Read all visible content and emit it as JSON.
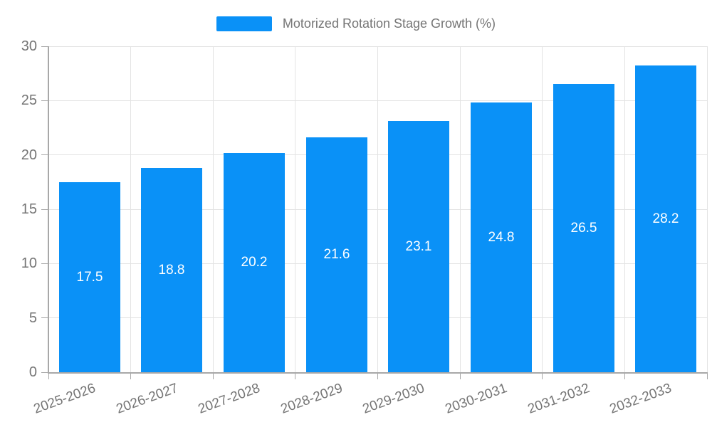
{
  "legend": {
    "label": "Motorized Rotation Stage Growth (%)"
  },
  "colors": {
    "bar": "#0a91f7",
    "grid": "#e3e3e3",
    "axis": "#a8a8a8",
    "tick_text": "#757575",
    "value_label": "#ffffff",
    "background": "#ffffff"
  },
  "chart_data": {
    "type": "bar",
    "title": "",
    "legend_entries": [
      "Motorized Rotation Stage Growth (%)"
    ],
    "legend_position": "top-center",
    "categories": [
      "2025-2026",
      "2026-2027",
      "2027-2028",
      "2028-2029",
      "2029-2030",
      "2030-2031",
      "2031-2032",
      "2032-2033"
    ],
    "values": [
      17.5,
      18.8,
      20.2,
      21.6,
      23.1,
      24.8,
      26.5,
      28.2
    ],
    "value_label_position": "inside-center",
    "xlabel": "",
    "ylabel": "",
    "ylim": [
      0,
      30
    ],
    "yticks": [
      0,
      5,
      10,
      15,
      20,
      25,
      30
    ],
    "grid": true,
    "x_tick_rotation_deg": 20
  }
}
